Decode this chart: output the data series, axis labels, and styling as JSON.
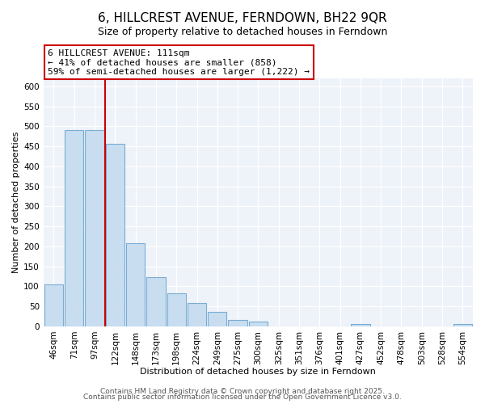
{
  "title": "6, HILLCREST AVENUE, FERNDOWN, BH22 9QR",
  "subtitle": "Size of property relative to detached houses in Ferndown",
  "xlabel": "Distribution of detached houses by size in Ferndown",
  "ylabel": "Number of detached properties",
  "bar_color": "#c8ddf0",
  "bar_edge_color": "#7aadd4",
  "background_color": "#eef2f9",
  "grid_color": "#ffffff",
  "categories": [
    "46sqm",
    "71sqm",
    "97sqm",
    "122sqm",
    "148sqm",
    "173sqm",
    "198sqm",
    "224sqm",
    "249sqm",
    "275sqm",
    "300sqm",
    "325sqm",
    "351sqm",
    "376sqm",
    "401sqm",
    "427sqm",
    "452sqm",
    "478sqm",
    "503sqm",
    "528sqm",
    "554sqm"
  ],
  "values": [
    105,
    490,
    490,
    457,
    207,
    122,
    82,
    58,
    37,
    15,
    12,
    0,
    0,
    0,
    0,
    6,
    0,
    0,
    0,
    0,
    5
  ],
  "ylim": [
    0,
    620
  ],
  "yticks": [
    0,
    50,
    100,
    150,
    200,
    250,
    300,
    350,
    400,
    450,
    500,
    550,
    600
  ],
  "property_line_x": 2.5,
  "property_line_color": "#cc0000",
  "annotation_text_line1": "6 HILLCREST AVENUE: 111sqm",
  "annotation_text_line2": "← 41% of detached houses are smaller (858)",
  "annotation_text_line3": "59% of semi-detached houses are larger (1,222) →",
  "footer_line1": "Contains HM Land Registry data © Crown copyright and database right 2025.",
  "footer_line2": "Contains public sector information licensed under the Open Government Licence v3.0.",
  "title_fontsize": 11,
  "subtitle_fontsize": 9,
  "axis_label_fontsize": 8,
  "tick_fontsize": 7.5,
  "annotation_fontsize": 8,
  "footer_fontsize": 6.5
}
